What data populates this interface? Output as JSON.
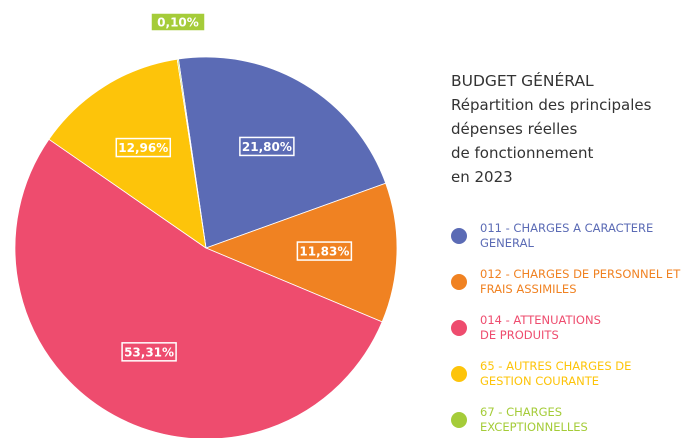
{
  "chart_data": {
    "type": "pie",
    "title": "BUDGET GÉNÉRAL",
    "subtitle": [
      "Répartition des principales",
      "dépenses réelles",
      "de fonctionnement",
      "en 2023"
    ],
    "series": [
      {
        "name": "011 - CHARGES A CARACTERE GENERAL",
        "color": "#5b6bb5",
        "values": [
          21.8
        ],
        "value_labels": [
          "21,80%"
        ]
      },
      {
        "name": "012 - CHARGES DE PERSONNEL ET FRAIS ASSIMILES",
        "color": "#f08222",
        "values": [
          11.83
        ],
        "value_labels": [
          "11,83%"
        ]
      },
      {
        "name": "014 - ATTENUATIONS DE PRODUITS",
        "color": "#ee4c6e",
        "values": [
          53.31
        ],
        "value_labels": [
          "53,31%"
        ]
      },
      {
        "name": "65 - AUTRES CHARGES DE GESTION COURANTE",
        "color": "#fdc40a",
        "values": [
          12.96
        ],
        "value_labels": [
          "12,96%"
        ]
      },
      {
        "name": "67 - CHARGES EXCEPTIONNELLES",
        "color": "#a5cc39",
        "values": [
          0.1
        ],
        "value_labels": [
          "0,10%"
        ]
      }
    ],
    "legend": "right"
  }
}
